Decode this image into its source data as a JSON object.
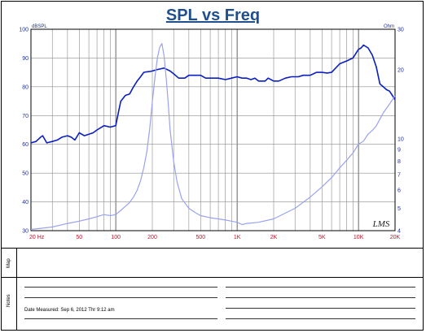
{
  "chart_data": {
    "type": "line",
    "title": "SPL vs Freq",
    "x_scale": "log",
    "xlim": [
      20,
      20000
    ],
    "x_ticks": [
      {
        "value": 20,
        "label": "20 Hz"
      },
      {
        "value": 50,
        "label": "50"
      },
      {
        "value": 100,
        "label": "100"
      },
      {
        "value": 200,
        "label": "200"
      },
      {
        "value": 500,
        "label": "500"
      },
      {
        "value": 1000,
        "label": "1K"
      },
      {
        "value": 2000,
        "label": "2K"
      },
      {
        "value": 5000,
        "label": "5K"
      },
      {
        "value": 10000,
        "label": "10K"
      },
      {
        "value": 20000,
        "label": "20K"
      }
    ],
    "y_left": {
      "unit": "dBSPL",
      "lim": [
        30,
        100
      ],
      "ticks": [
        30,
        40,
        50,
        60,
        70,
        80,
        90,
        100
      ]
    },
    "y_right": {
      "unit": "Ohm",
      "scale": "log",
      "lim": [
        4,
        30
      ],
      "tick_labels": [
        {
          "value": 30,
          "label": "30"
        },
        {
          "value": 20,
          "label": "20"
        },
        {
          "value": 10,
          "label": "10"
        },
        {
          "value": 9,
          "label": "9"
        },
        {
          "value": 8,
          "label": "8"
        },
        {
          "value": 7,
          "label": "7"
        },
        {
          "value": 6,
          "label": "6"
        },
        {
          "value": 5,
          "label": "5"
        },
        {
          "value": 4,
          "label": "4"
        }
      ]
    },
    "grid": true,
    "watermark": "LMS",
    "series": [
      {
        "axis": "left",
        "color": "#0a1fbf",
        "x": [
          20,
          22,
          24,
          25,
          27,
          30,
          33,
          36,
          40,
          43,
          46,
          50,
          55,
          60,
          65,
          70,
          80,
          90,
          100,
          105,
          110,
          120,
          130,
          140,
          150,
          160,
          170,
          180,
          190,
          200,
          220,
          250,
          280,
          300,
          330,
          370,
          400,
          450,
          500,
          550,
          600,
          700,
          800,
          900,
          1000,
          1100,
          1200,
          1300,
          1400,
          1500,
          1600,
          1700,
          1800,
          2000,
          2200,
          2500,
          2800,
          3200,
          3500,
          4000,
          4500,
          5000,
          5500,
          6000,
          7000,
          8000,
          9000,
          10000,
          10500,
          11000,
          12000,
          13000,
          14000,
          15000,
          16000,
          17000,
          18000,
          19000,
          20000
        ],
        "y": [
          60.5,
          61,
          62.5,
          63,
          60.5,
          61,
          61.5,
          62.5,
          63,
          62.5,
          61.5,
          64,
          63,
          63.5,
          64,
          65,
          66.5,
          66,
          66.5,
          71,
          75,
          77,
          77.5,
          80,
          82,
          83.5,
          85,
          85.2,
          85.3,
          85.5,
          86,
          86.5,
          85.5,
          84.5,
          83,
          83,
          84,
          84,
          84,
          83,
          83,
          83,
          82.5,
          83,
          83.5,
          83,
          83,
          82.5,
          83,
          82,
          82,
          82,
          83,
          82,
          82,
          83,
          83.5,
          83.5,
          84,
          84,
          85,
          85,
          84.8,
          85,
          88,
          89,
          90,
          93,
          93.5,
          94.5,
          93.5,
          91,
          87,
          81,
          80,
          79,
          78.5,
          77,
          75.5
        ]
      },
      {
        "axis": "right",
        "color": "#9aa2ee",
        "x": [
          20,
          30,
          40,
          50,
          60,
          70,
          80,
          90,
          100,
          110,
          120,
          130,
          140,
          150,
          160,
          170,
          180,
          190,
          200,
          210,
          220,
          230,
          240,
          250,
          260,
          270,
          280,
          300,
          320,
          350,
          400,
          450,
          500,
          600,
          700,
          800,
          900,
          1000,
          1100,
          1200,
          1500,
          2000,
          3000,
          4000,
          5000,
          6000,
          7000,
          8000,
          9000,
          10000,
          11000,
          12000,
          13000,
          14000,
          15000,
          16000,
          17000,
          18000,
          19000,
          20000
        ],
        "y": [
          4.05,
          4.15,
          4.3,
          4.4,
          4.5,
          4.6,
          4.7,
          4.65,
          4.7,
          4.9,
          5.1,
          5.3,
          5.6,
          6.0,
          6.6,
          7.5,
          8.8,
          11.0,
          14.5,
          18.5,
          22.5,
          25.0,
          26.0,
          23.0,
          18.5,
          14.5,
          11.0,
          8.0,
          6.5,
          5.5,
          5.0,
          4.8,
          4.65,
          4.55,
          4.5,
          4.45,
          4.4,
          4.35,
          4.25,
          4.3,
          4.35,
          4.5,
          5.0,
          5.6,
          6.2,
          6.8,
          7.5,
          8.1,
          8.7,
          9.5,
          9.8,
          10.5,
          10.9,
          11.4,
          12.2,
          13.0,
          13.6,
          14.2,
          14.8,
          15.4
        ]
      }
    ]
  },
  "footer": {
    "map_label": "Map",
    "notes_label": "Notes",
    "date_measured": "Date Measured:  Sep  6, 2012  Thr  9:12 am"
  }
}
